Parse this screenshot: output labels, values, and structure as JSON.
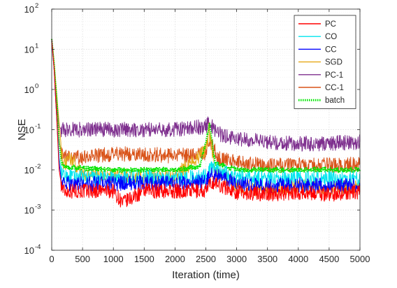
{
  "chart_data": {
    "type": "line",
    "xlabel": "Iteration (time)",
    "ylabel": "NSE",
    "xlim": [
      0,
      5000
    ],
    "ylim": [
      0.0001,
      100
    ],
    "yscale": "log",
    "grid": true,
    "minor_grid": true,
    "legend_position": "top-right",
    "x_ticks": [
      0,
      500,
      1000,
      1500,
      2000,
      2500,
      3000,
      3500,
      4000,
      4500,
      5000
    ],
    "x_tick_labels": [
      "0",
      "500",
      "1000",
      "1500",
      "2000",
      "2500",
      "3000",
      "3500",
      "4000",
      "4500",
      "5000"
    ],
    "y_ticks": [
      0.0001,
      0.001,
      0.01,
      0.1,
      1,
      10,
      100
    ],
    "y_tick_bases": [
      "10",
      "10",
      "10",
      "10",
      "10",
      "10",
      "10"
    ],
    "y_tick_exps": [
      "-4",
      "-3",
      "-2",
      "-1",
      "0",
      "1",
      "2"
    ],
    "series": [
      {
        "name": "PC",
        "color": "#ff0000",
        "style": "solid",
        "x": [
          0,
          40,
          80,
          120,
          160,
          200,
          500,
          1000,
          1150,
          1500,
          2000,
          2500,
          2600,
          3000,
          3500,
          4000,
          4500,
          5000
        ],
        "y": [
          18,
          3,
          0.2,
          0.01,
          0.004,
          0.003,
          0.003,
          0.003,
          0.0015,
          0.003,
          0.003,
          0.003,
          0.005,
          0.0028,
          0.0025,
          0.0028,
          0.0025,
          0.0028
        ]
      },
      {
        "name": "CO",
        "color": "#00e5ee",
        "style": "solid",
        "x": [
          0,
          40,
          80,
          120,
          160,
          200,
          500,
          1000,
          1500,
          2000,
          2500,
          2600,
          3000,
          3500,
          4000,
          4500,
          5000
        ],
        "y": [
          18,
          3,
          0.2,
          0.02,
          0.008,
          0.007,
          0.0065,
          0.006,
          0.0065,
          0.006,
          0.007,
          0.012,
          0.0065,
          0.006,
          0.0065,
          0.006,
          0.006
        ]
      },
      {
        "name": "CC",
        "color": "#0000ff",
        "style": "solid",
        "x": [
          0,
          40,
          80,
          120,
          160,
          200,
          500,
          1000,
          1500,
          2000,
          2500,
          2600,
          3000,
          3500,
          4000,
          4500,
          5000
        ],
        "y": [
          18,
          3,
          0.2,
          0.015,
          0.005,
          0.0045,
          0.0045,
          0.0045,
          0.0048,
          0.0045,
          0.005,
          0.008,
          0.0045,
          0.004,
          0.0042,
          0.004,
          0.004
        ]
      },
      {
        "name": "SGD",
        "color": "#e6a817",
        "style": "solid",
        "x": [
          0,
          40,
          80,
          120,
          160,
          200,
          300,
          500,
          1000,
          1500,
          2000,
          2500,
          2550,
          2650,
          3000,
          3500,
          4000,
          4500,
          5000
        ],
        "y": [
          18,
          5,
          0.8,
          0.15,
          0.03,
          0.012,
          0.02,
          0.008,
          0.007,
          0.007,
          0.007,
          0.03,
          0.1,
          0.01,
          0.004,
          0.003,
          0.004,
          0.0035,
          0.004
        ]
      },
      {
        "name": "PC-1",
        "color": "#7e2f8e",
        "style": "solid",
        "x": [
          0,
          40,
          80,
          120,
          160,
          200,
          500,
          1000,
          1500,
          2000,
          2500,
          2550,
          2700,
          3000,
          3500,
          4000,
          4500,
          5000
        ],
        "y": [
          18,
          4,
          0.5,
          0.12,
          0.1,
          0.1,
          0.1,
          0.1,
          0.1,
          0.1,
          0.12,
          0.15,
          0.08,
          0.06,
          0.05,
          0.045,
          0.045,
          0.05
        ]
      },
      {
        "name": "CC-1",
        "color": "#d95319",
        "style": "solid",
        "x": [
          0,
          40,
          80,
          120,
          160,
          200,
          500,
          1000,
          1500,
          2000,
          2500,
          2550,
          2700,
          3000,
          3500,
          4000,
          4500,
          5000
        ],
        "y": [
          18,
          4,
          0.4,
          0.05,
          0.025,
          0.02,
          0.02,
          0.025,
          0.025,
          0.022,
          0.025,
          0.06,
          0.02,
          0.015,
          0.013,
          0.013,
          0.013,
          0.014
        ]
      },
      {
        "name": "batch",
        "color": "#00e600",
        "style": "dotted",
        "x": [
          0,
          40,
          80,
          120,
          160,
          200,
          500,
          1000,
          1500,
          2000,
          2400,
          2500,
          2560,
          2650,
          3000,
          3500,
          4000,
          4500,
          5000
        ],
        "y": [
          18,
          4,
          0.6,
          0.05,
          0.015,
          0.012,
          0.011,
          0.01,
          0.01,
          0.01,
          0.012,
          0.05,
          0.14,
          0.015,
          0.01,
          0.01,
          0.01,
          0.01,
          0.01
        ]
      }
    ]
  }
}
